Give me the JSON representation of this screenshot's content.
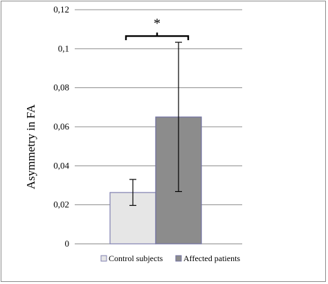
{
  "chart_data": {
    "type": "bar",
    "title": "",
    "xlabel": "",
    "ylabel": "Asymmetry in FA",
    "ylim": [
      0,
      0.12
    ],
    "y_ticks": [
      {
        "value": 0,
        "label": "0"
      },
      {
        "value": 0.02,
        "label": "0,02"
      },
      {
        "value": 0.04,
        "label": "0,04"
      },
      {
        "value": 0.06,
        "label": "0,06"
      },
      {
        "value": 0.08,
        "label": "0,08"
      },
      {
        "value": 0.1,
        "label": "0,1"
      },
      {
        "value": 0.12,
        "label": "0,12"
      }
    ],
    "grid": true,
    "legend_position": "bottom",
    "series": [
      {
        "name": "Control subjects",
        "value": 0.0263,
        "error_low": 0.0197,
        "error_high": 0.033,
        "color": "#e6e6e6",
        "edge_color": "#8080b0"
      },
      {
        "name": "Affected patients",
        "value": 0.065,
        "error_low": 0.0268,
        "error_high": 0.1033,
        "color": "#8c8c8c",
        "edge_color": "#6f6fa0"
      }
    ],
    "annotations": [
      {
        "text": "*",
        "type": "significance-bracket",
        "between": [
          "Control subjects",
          "Affected patients"
        ],
        "at_value": 0.1065
      }
    ]
  }
}
